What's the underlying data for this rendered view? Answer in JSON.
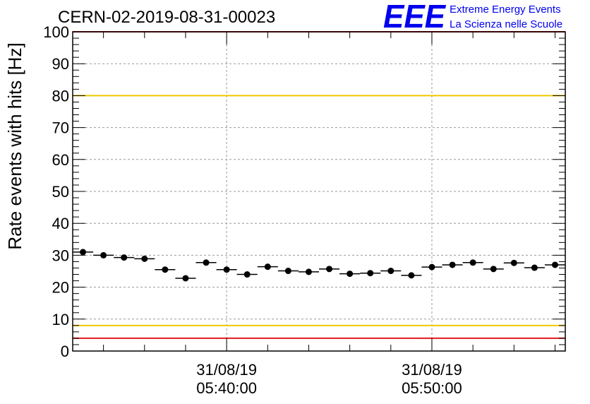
{
  "chart_data": {
    "type": "scatter",
    "title": "CERN-02-2019-08-31-00023",
    "xlabel": "",
    "ylabel": "Rate events with hits [Hz]",
    "ylim": [
      0,
      100
    ],
    "yticks": [
      0,
      10,
      20,
      30,
      40,
      50,
      60,
      70,
      80,
      90,
      100
    ],
    "x_unit": "minutes since 05:32:30",
    "xlim": [
      0,
      24
    ],
    "xtick_labels": [
      {
        "x": 7.5,
        "date": "31/08/19",
        "time": "05:40:00"
      },
      {
        "x": 17.5,
        "date": "31/08/19",
        "time": "05:50:00"
      }
    ],
    "bin_width": 1,
    "grid": true,
    "series": [
      {
        "name": "rate",
        "x": [
          0.5,
          1.5,
          2.5,
          3.5,
          4.5,
          5.5,
          6.5,
          7.5,
          8.5,
          9.5,
          10.5,
          11.5,
          12.5,
          13.5,
          14.5,
          15.5,
          16.5,
          17.5,
          18.5,
          19.5,
          20.5,
          21.5,
          22.5,
          23.5
        ],
        "values": [
          31.0,
          30.0,
          29.3,
          28.9,
          25.5,
          22.8,
          27.7,
          25.5,
          24.0,
          26.4,
          25.1,
          24.8,
          25.7,
          24.2,
          24.4,
          25.1,
          23.7,
          26.3,
          27.0,
          27.7,
          25.7,
          27.6,
          26.1,
          27.0
        ]
      }
    ],
    "reference_lines": [
      {
        "y": 100,
        "color": "#e31a1c"
      },
      {
        "y": 80,
        "color": "#f0c800"
      },
      {
        "y": 8,
        "color": "#f0c800"
      },
      {
        "y": 4,
        "color": "#e31a1c"
      }
    ]
  },
  "logo": {
    "mark": "EEE",
    "line1": "Extreme Energy Events",
    "line2": "La Scienza nelle Scuole",
    "color": "#0000ee"
  }
}
